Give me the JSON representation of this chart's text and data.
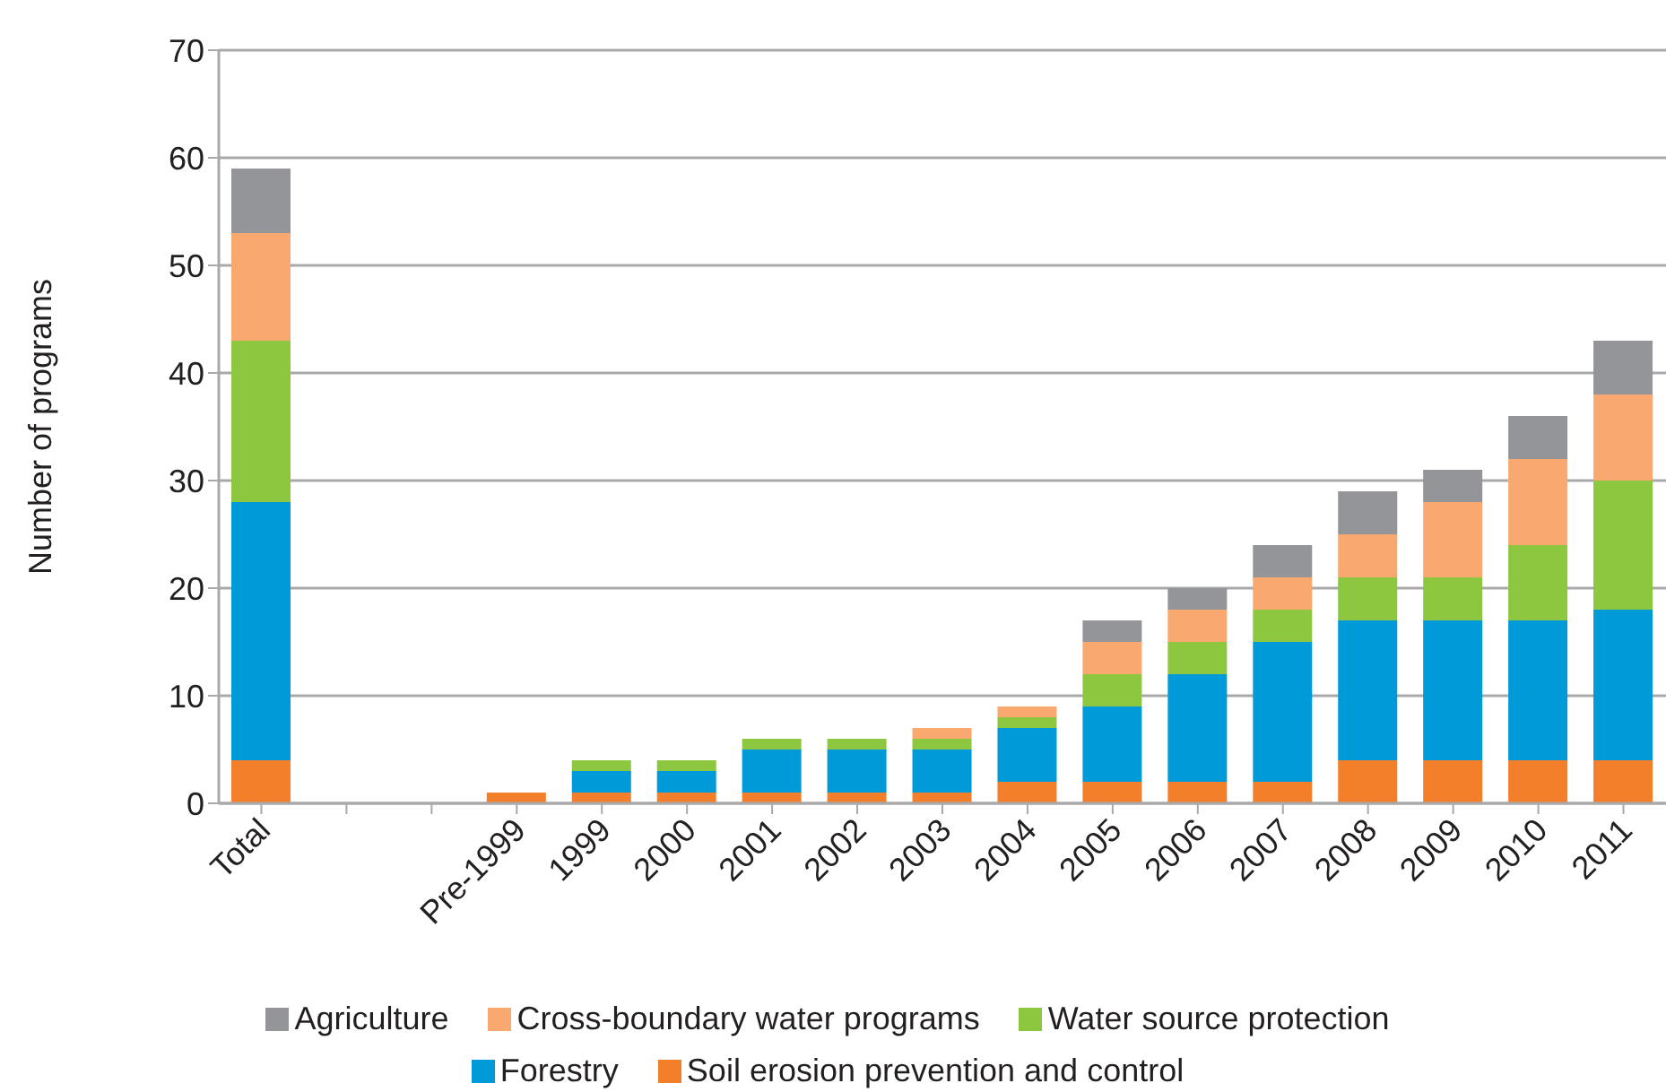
{
  "chart_data": {
    "type": "bar",
    "stacked": true,
    "ylabel": "Number of programs",
    "categories": [
      "Total",
      null,
      null,
      "Pre-1999",
      "1999",
      "2000",
      "2001",
      "2002",
      "2003",
      "2004",
      "2005",
      "2006",
      "2007",
      "2008",
      "2009",
      "2010",
      "2011"
    ],
    "series": [
      {
        "name": "Soil erosion prevention and control",
        "color": "#f47f2a",
        "values": [
          4,
          null,
          null,
          1,
          1,
          1,
          1,
          1,
          1,
          2,
          2,
          2,
          2,
          4,
          4,
          4,
          4
        ]
      },
      {
        "name": "Forestry",
        "color": "#009ad8",
        "values": [
          24,
          null,
          null,
          0,
          2,
          2,
          4,
          4,
          4,
          5,
          7,
          10,
          13,
          13,
          13,
          13,
          14
        ]
      },
      {
        "name": "Water source protection",
        "color": "#8dc63f",
        "values": [
          15,
          null,
          null,
          0,
          1,
          1,
          1,
          1,
          1,
          1,
          3,
          3,
          3,
          4,
          4,
          7,
          12
        ]
      },
      {
        "name": "Cross-boundary water programs",
        "color": "#f9a870",
        "values": [
          10,
          null,
          null,
          0,
          0,
          0,
          0,
          0,
          1,
          1,
          3,
          3,
          3,
          4,
          7,
          8,
          8
        ]
      },
      {
        "name": "Agriculture",
        "color": "#939598",
        "values": [
          6,
          null,
          null,
          0,
          0,
          0,
          0,
          0,
          0,
          0,
          2,
          2,
          3,
          4,
          3,
          4,
          5
        ]
      }
    ],
    "ylim": [
      0,
      70
    ],
    "yticks": [
      0,
      10,
      20,
      30,
      40,
      50,
      60,
      70
    ],
    "grid": "y",
    "legend": "bottom"
  }
}
